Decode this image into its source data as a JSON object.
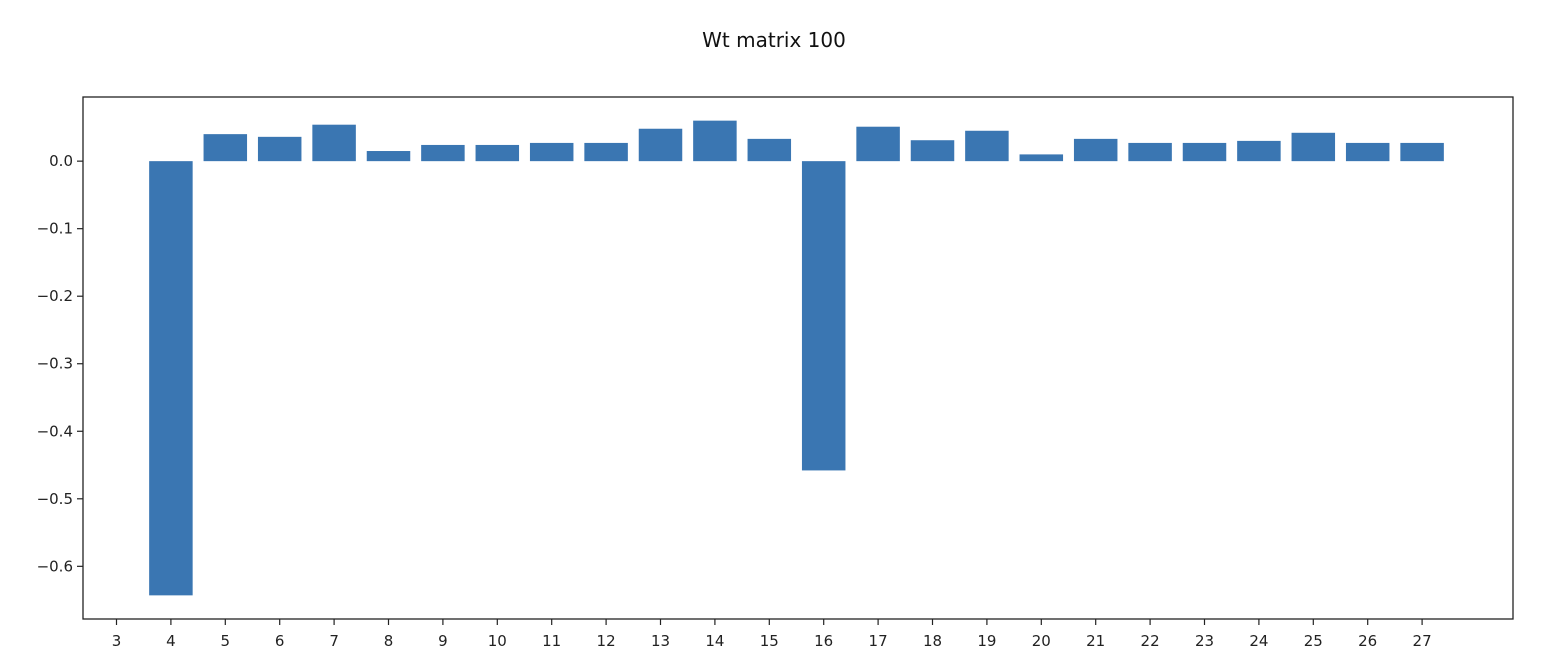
{
  "chart_data": {
    "type": "bar",
    "title": "Wt matrix 100",
    "xlabel": "",
    "ylabel": "",
    "categories": [
      "3",
      "4",
      "5",
      "6",
      "7",
      "8",
      "9",
      "10",
      "11",
      "12",
      "13",
      "14",
      "15",
      "16",
      "17",
      "18",
      "19",
      "20",
      "21",
      "22",
      "23",
      "24",
      "25",
      "26",
      "27"
    ],
    "values": [
      null,
      -0.643,
      0.04,
      0.036,
      0.054,
      0.015,
      0.024,
      0.024,
      0.027,
      0.027,
      0.048,
      0.06,
      0.033,
      -0.458,
      0.051,
      0.031,
      0.045,
      0.01,
      0.033,
      0.027,
      0.027,
      0.03,
      0.042,
      0.027,
      0.027
    ],
    "ylim": [
      -0.678,
      0.095
    ],
    "yticks": [
      0.0,
      -0.1,
      -0.2,
      -0.3,
      -0.4,
      -0.5,
      -0.6
    ],
    "ytick_labels": [
      "0.0",
      "−0.1",
      "−0.2",
      "−0.3",
      "−0.4",
      "−0.5",
      "−0.6"
    ],
    "bar_color": "#3a76b2",
    "grid": false,
    "legend": null
  }
}
